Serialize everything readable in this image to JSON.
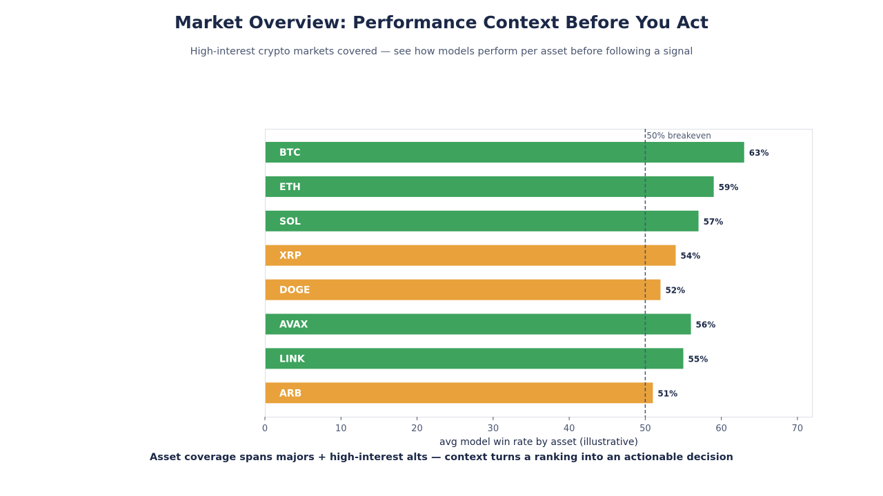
{
  "header": {
    "title": "Market Overview: Performance Context Before You Act",
    "subtitle": "High-interest crypto markets covered — see how models perform per asset before following a signal"
  },
  "footer": {
    "text": "Asset coverage spans majors + high-interest alts — context turns a ranking into an actionable decision"
  },
  "colors": {
    "above_threshold": "#3da35d",
    "below_threshold": "#e8a13b",
    "reference_line": "#4a5670"
  },
  "chart_data": {
    "type": "bar",
    "orientation": "horizontal",
    "categories": [
      "BTC",
      "ETH",
      "SOL",
      "XRP",
      "DOGE",
      "AVAX",
      "LINK",
      "ARB"
    ],
    "values": [
      63,
      59,
      57,
      54,
      52,
      56,
      55,
      51
    ],
    "value_labels": [
      "63%",
      "59%",
      "57%",
      "54%",
      "52%",
      "56%",
      "55%",
      "51%"
    ],
    "bar_colors": [
      "#3da35d",
      "#3da35d",
      "#3da35d",
      "#e8a13b",
      "#e8a13b",
      "#3da35d",
      "#3da35d",
      "#e8a13b"
    ],
    "xlabel": "avg model win rate by asset (illustrative)",
    "ylabel": "",
    "xlim": [
      0,
      72
    ],
    "xticks": [
      0,
      10,
      20,
      30,
      40,
      50,
      60,
      70
    ],
    "reference_line": {
      "value": 50,
      "label": "50% breakeven"
    },
    "grid": false
  }
}
